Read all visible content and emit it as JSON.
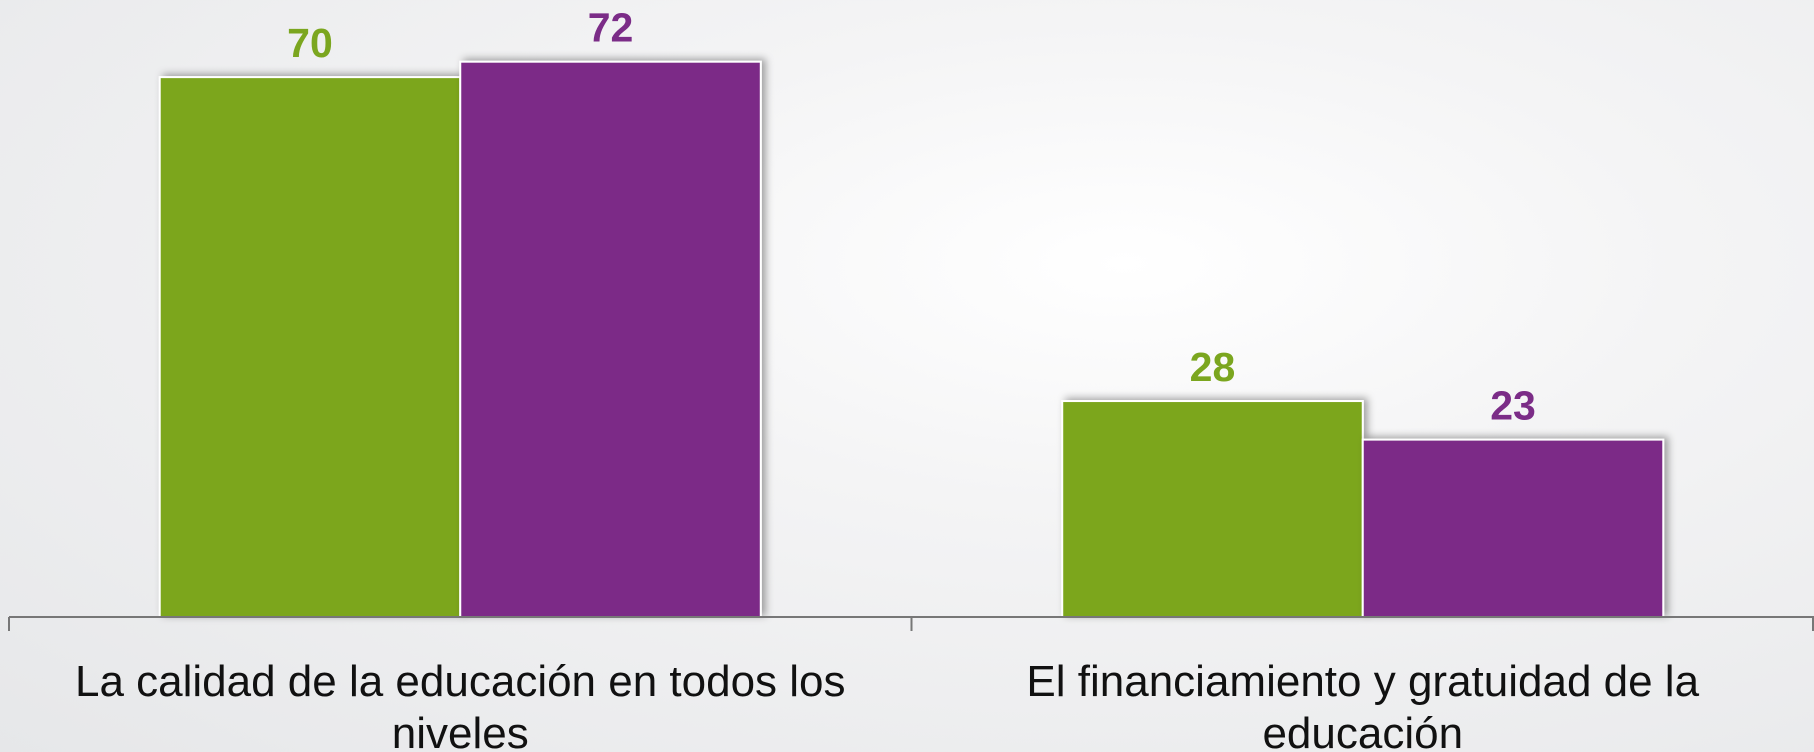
{
  "chart_data": {
    "type": "bar",
    "categories": [
      "La calidad de la educación en todos los niveles",
      "El financiamiento y gratuidad de la educación"
    ],
    "series": [
      {
        "color": "#7ba61f",
        "values": [
          70,
          28
        ]
      },
      {
        "color": "#7b2c87",
        "values": [
          72,
          23
        ]
      }
    ],
    "ylim": [
      0,
      80
    ]
  }
}
